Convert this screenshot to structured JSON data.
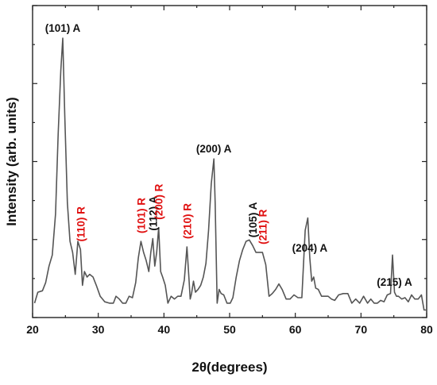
{
  "chart_data": {
    "type": "line",
    "title": "",
    "xlabel": "2θ(degrees)",
    "ylabel": "Intensity (arb. units)",
    "xlim": [
      20,
      80
    ],
    "ylim": [
      0,
      100
    ],
    "y_tick_labels_shown": false,
    "x_ticks": [
      "20",
      "30",
      "40",
      "50",
      "60",
      "70",
      "80"
    ],
    "grid": false,
    "legend": "none",
    "line_color": "#555555",
    "series": [
      {
        "x": [
          20.3,
          20.8,
          21.5,
          22.0,
          22.5,
          23.0,
          23.5,
          23.9,
          24.3,
          24.6,
          24.9,
          25.3,
          25.7,
          26.1,
          26.5,
          26.9,
          27.3,
          27.6,
          27.9,
          28.3,
          28.7,
          29.2,
          29.7,
          30.3,
          31.0,
          31.7,
          32.3,
          32.7,
          33.2,
          33.7,
          34.2,
          34.7,
          35.2,
          35.7,
          36.1,
          36.5,
          36.9,
          37.3,
          37.7,
          38.0,
          38.3,
          38.6,
          38.9,
          39.2,
          39.5,
          39.8,
          40.2,
          40.6,
          41.1,
          41.6,
          42.1,
          42.6,
          43.1,
          43.5,
          43.8,
          44.0,
          44.2,
          44.5,
          44.8,
          45.2,
          45.6,
          46.0,
          46.4,
          46.8,
          47.2,
          47.6,
          47.8,
          48.1,
          48.4,
          48.7,
          49.1,
          49.6,
          50.1,
          50.5,
          51.0,
          51.5,
          52.0,
          52.5,
          53.0,
          53.5,
          54.0,
          54.5,
          55.0,
          55.5,
          56.0,
          56.5,
          57.0,
          57.5,
          58.0,
          58.6,
          59.2,
          59.8,
          60.4,
          61.0,
          61.5,
          61.9,
          62.2,
          62.5,
          62.8,
          63.1,
          63.5,
          64.0,
          64.5,
          65.0,
          65.5,
          66.0,
          66.6,
          67.3,
          68.0,
          68.6,
          69.2,
          69.8,
          70.4,
          71.0,
          71.5,
          72.0,
          72.5,
          73.0,
          73.5,
          74.0,
          74.5,
          74.8,
          75.1,
          75.4,
          75.7,
          76.2,
          76.7,
          77.2,
          77.7,
          78.2,
          78.7,
          79.2,
          79.6,
          80.0
        ],
        "values": [
          3.5,
          7.5,
          8.0,
          11.0,
          17.0,
          21.0,
          36.0,
          65.0,
          88.0,
          100.0,
          72.0,
          40.0,
          26.0,
          22.0,
          14.0,
          26.0,
          23.0,
          10.0,
          15.0,
          13.0,
          14.0,
          13.0,
          10.0,
          6.0,
          4.0,
          3.5,
          3.5,
          6.0,
          5.0,
          3.5,
          3.5,
          6.0,
          5.5,
          11.0,
          20.0,
          26.0,
          22.0,
          19.0,
          15.0,
          22.0,
          27.0,
          17.0,
          22.0,
          31.0,
          15.0,
          13.0,
          10.0,
          3.5,
          6.0,
          5.0,
          6.0,
          6.0,
          12.0,
          24.0,
          13.0,
          5.0,
          7.0,
          11.5,
          7.5,
          8.5,
          10.0,
          13.0,
          18.0,
          30.0,
          47.0,
          56.0,
          40.0,
          3.5,
          8.5,
          7.0,
          6.5,
          3.5,
          3.5,
          5.5,
          13.0,
          19.0,
          23.0,
          26.0,
          26.5,
          24.5,
          22.0,
          22.0,
          22.0,
          17.5,
          6.0,
          7.0,
          8.5,
          10.5,
          8.5,
          5.0,
          5.0,
          6.5,
          5.5,
          5.5,
          30.0,
          34.5,
          20.0,
          11.5,
          13.0,
          9.0,
          8.5,
          6.0,
          6.0,
          6.0,
          5.0,
          4.5,
          6.5,
          7.0,
          7.0,
          3.5,
          5.0,
          3.5,
          6.0,
          3.5,
          5.0,
          3.5,
          3.5,
          4.5,
          4.0,
          6.5,
          7.0,
          21.0,
          7.5,
          6.0,
          6.0,
          5.0,
          5.5,
          4.0,
          6.5,
          5.0,
          5.0,
          6.5,
          1.0,
          1.0
        ]
      }
    ],
    "annotations": [
      {
        "text": "(101) A",
        "x": 24.6,
        "color": "#111111",
        "orientation": "horizontal"
      },
      {
        "text": "(110) R",
        "x": 27.3,
        "color": "#e01010",
        "orientation": "vertical"
      },
      {
        "text": "(101) R",
        "x": 36.5,
        "color": "#e01010",
        "orientation": "vertical"
      },
      {
        "text": "(112) A",
        "x": 38.3,
        "color": "#111111",
        "orientation": "vertical"
      },
      {
        "text": "(200) R",
        "x": 39.2,
        "color": "#e01010",
        "orientation": "vertical"
      },
      {
        "text": "(210) R",
        "x": 43.5,
        "color": "#e01010",
        "orientation": "vertical"
      },
      {
        "text": "(200) A",
        "x": 47.6,
        "color": "#111111",
        "orientation": "horizontal"
      },
      {
        "text": "(105) A",
        "x": 53.5,
        "color": "#111111",
        "orientation": "vertical"
      },
      {
        "text": "(211) R",
        "x": 55.0,
        "color": "#e01010",
        "orientation": "vertical"
      },
      {
        "text": "(204) A",
        "x": 62.2,
        "color": "#111111",
        "orientation": "horizontal"
      },
      {
        "text": "(215) A",
        "x": 75.1,
        "color": "#111111",
        "orientation": "horizontal"
      }
    ]
  }
}
